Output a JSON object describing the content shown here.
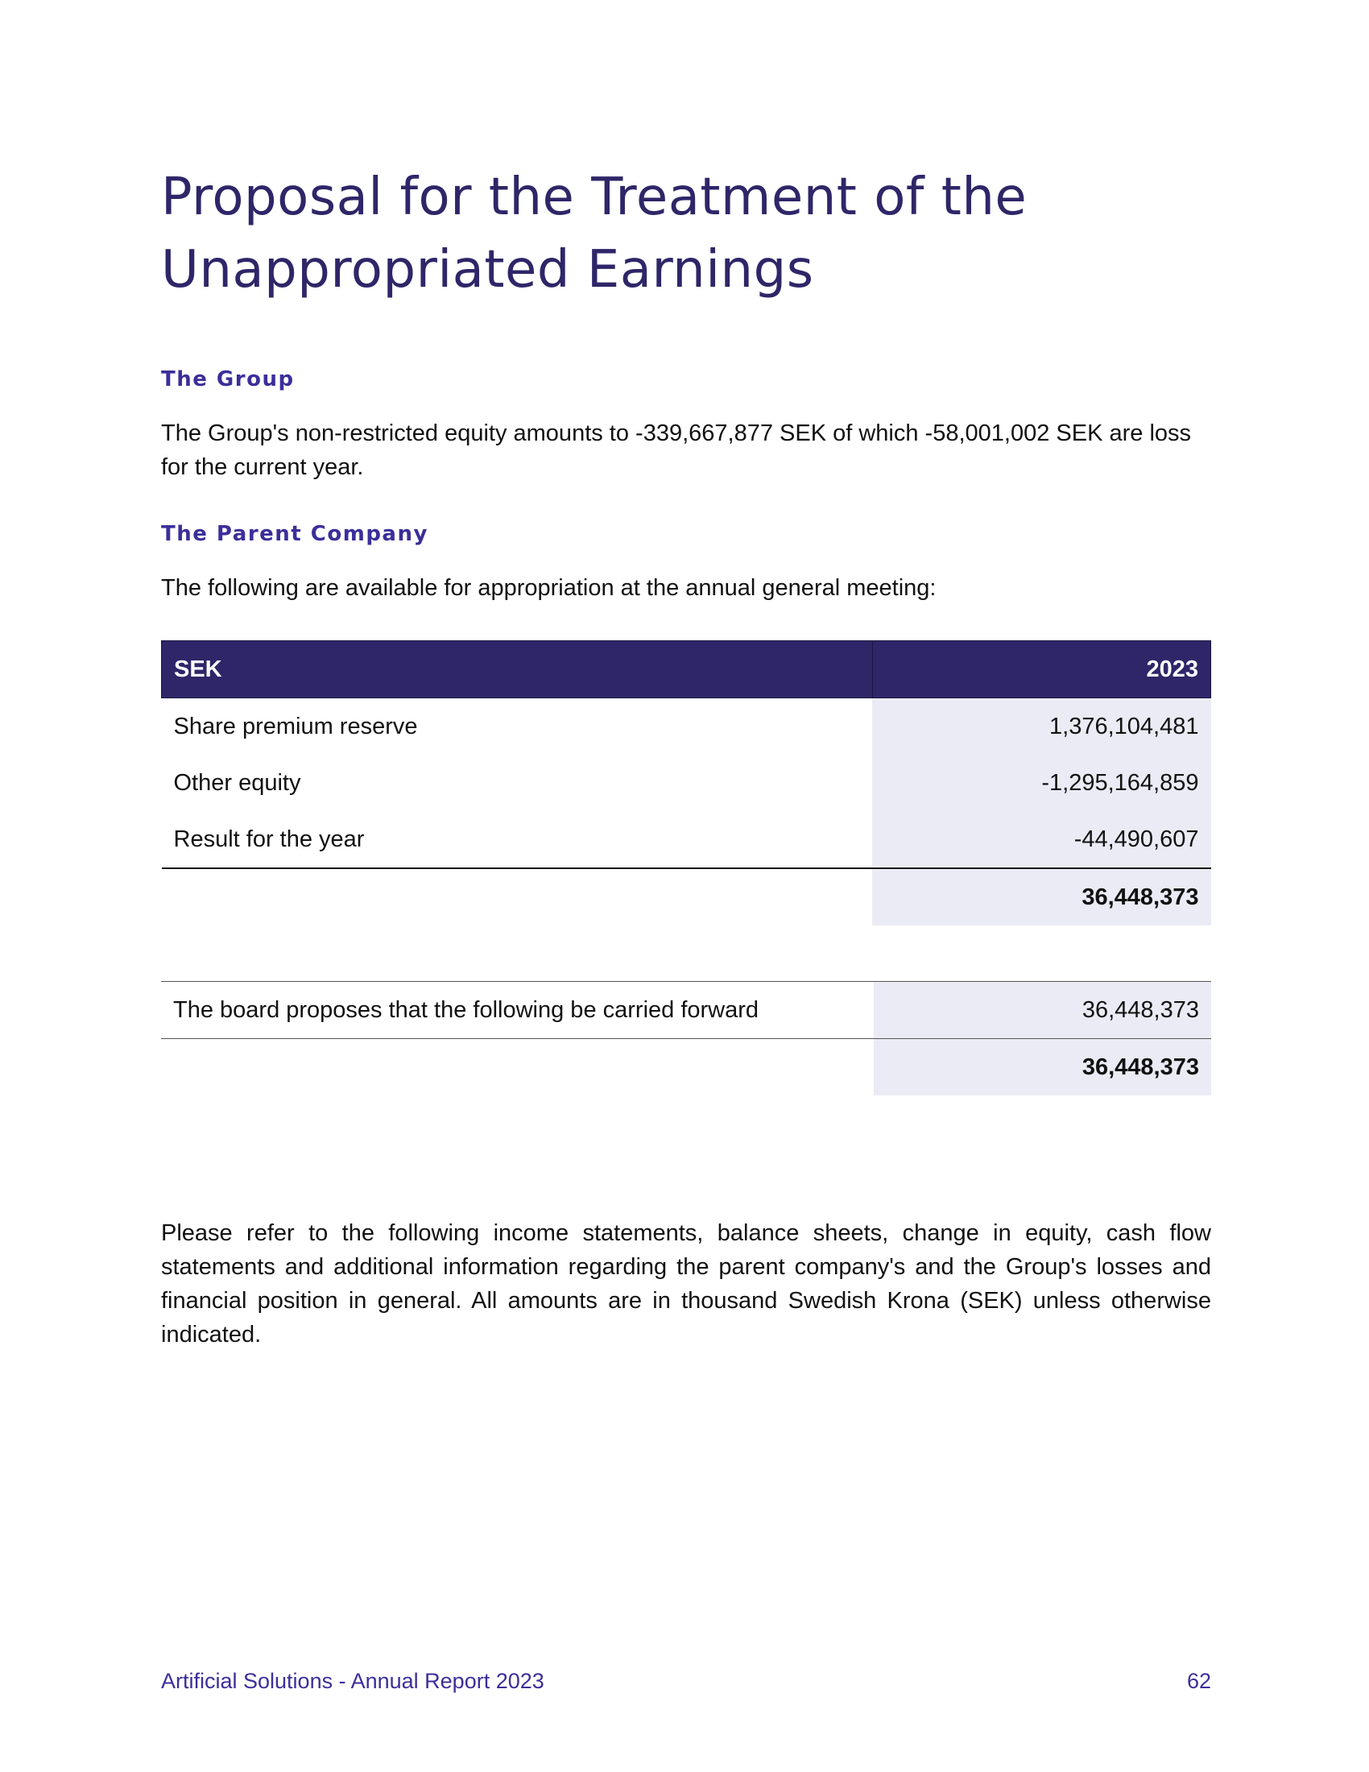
{
  "title_line1": "Proposal for the Treatment of the",
  "title_line2": "Unappropriated Earnings",
  "group": {
    "heading": "The Group",
    "text": "The Group's non-restricted equity amounts to -339,667,877 SEK of which -58,001,002 SEK are loss for the current year."
  },
  "parent": {
    "heading": "The Parent Company",
    "text": "The following are available for appropriation at the annual general meeting:"
  },
  "table1": {
    "header": {
      "label": "SEK",
      "value": "2023"
    },
    "rows": [
      {
        "label": "Share premium reserve",
        "value": "1,376,104,481"
      },
      {
        "label": "Other equity",
        "value": "-1,295,164,859"
      },
      {
        "label": "Result for the year",
        "value": "-44,490,607"
      }
    ],
    "total": "36,448,373"
  },
  "table2": {
    "rows": [
      {
        "label": "The board proposes that the following be carried forward",
        "value": "36,448,373"
      }
    ],
    "total": "36,448,373"
  },
  "refer_text": "Please refer to the following income statements, balance sheets, change in equity, cash flow statements and additional information regarding the parent company's and the Group's losses and financial position in general. All amounts are in thousand Swedish Krona (SEK) unless otherwise indicated.",
  "footer": {
    "left": "Artificial Solutions - Annual Report 2023",
    "page_number": "62"
  }
}
